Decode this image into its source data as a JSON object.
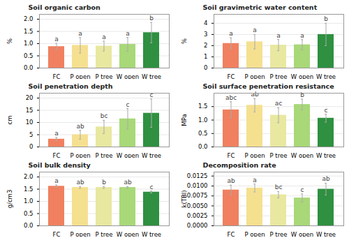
{
  "chart_data": [
    {
      "type": "bar",
      "title": "Soil organic carbon",
      "ylabel": "%",
      "categories": [
        "FC",
        "P open",
        "P tree",
        "W open",
        "W tree"
      ],
      "values": [
        0.88,
        0.93,
        0.9,
        0.97,
        1.45
      ],
      "errors": [
        0.13,
        0.32,
        0.2,
        0.28,
        0.42
      ],
      "annotations": [
        "a",
        "a",
        "a",
        "a",
        "b"
      ],
      "colors": [
        "#F08060",
        "#F5E090",
        "#E8E8A0",
        "#A8D878",
        "#2E9040"
      ],
      "ylim": [
        0,
        2.2
      ],
      "yticks": [
        {
          "value": 0,
          "label": "0.0"
        },
        0.5,
        {
          "value": 1,
          "label": "1.0"
        },
        1.5,
        {
          "value": 2,
          "label": "2.0"
        }
      ],
      "grid": true
    },
    {
      "type": "bar",
      "title": "Soil gravimetric water content",
      "ylabel": "%",
      "categories": [
        "FC",
        "P open",
        "P tree",
        "W open",
        "W tree"
      ],
      "values": [
        2.2,
        2.35,
        2.05,
        2.08,
        3.0
      ],
      "errors": [
        0.5,
        0.65,
        0.5,
        0.45,
        1.0
      ],
      "annotations": [
        "a",
        "a",
        "a",
        "a",
        "b"
      ],
      "colors": [
        "#F08060",
        "#F5E090",
        "#E8E8A0",
        "#A8D878",
        "#2E9040"
      ],
      "ylim": [
        0,
        4.8
      ],
      "yticks": [
        0,
        1,
        2,
        3,
        4
      ],
      "grid": true
    },
    {
      "type": "bar",
      "title": "Soil penetration depth",
      "ylabel": "cm",
      "categories": [
        "FC",
        "P open",
        "P tree",
        "W open",
        "W tree"
      ],
      "values": [
        3.2,
        5.0,
        8.2,
        11.5,
        13.8
      ],
      "errors": [
        0.7,
        1.8,
        2.7,
        4.2,
        5.8
      ],
      "annotations": [
        "a",
        "ab",
        "bc",
        "c",
        "c"
      ],
      "colors": [
        "#F08060",
        "#F5E090",
        "#E8E8A0",
        "#A8D878",
        "#2E9040"
      ],
      "ylim": [
        0,
        22
      ],
      "yticks": [
        0,
        5,
        10,
        15,
        20
      ],
      "grid": true
    },
    {
      "type": "bar",
      "title": "Soil surface penetration resistance",
      "ylabel": "MPa",
      "categories": [
        "FC",
        "P open",
        "P tree",
        "W open",
        "W tree"
      ],
      "values": [
        1.38,
        1.55,
        1.18,
        1.58,
        1.07
      ],
      "errors": [
        0.3,
        0.25,
        0.28,
        0.2,
        0.15
      ],
      "annotations": [
        "abc",
        "ab",
        "ac",
        "b",
        "c"
      ],
      "colors": [
        "#F08060",
        "#F5E090",
        "#E8E8A0",
        "#A8D878",
        "#2E9040"
      ],
      "ylim": [
        0,
        2.0
      ],
      "yticks": [
        {
          "value": 0,
          "label": "0.0"
        },
        0.5,
        {
          "value": 1,
          "label": "1.0"
        },
        1.5
      ],
      "grid": true
    },
    {
      "type": "bar",
      "title": "Soil bulk density",
      "ylabel": "g/cm3",
      "categories": [
        "FC",
        "P open",
        "P tree",
        "W open",
        "W tree"
      ],
      "values": [
        1.62,
        1.57,
        1.57,
        1.57,
        1.38
      ],
      "errors": [
        0.05,
        0.04,
        0.04,
        0.04,
        0.04
      ],
      "annotations": [
        "a",
        "ab",
        "b",
        "ab",
        "c"
      ],
      "colors": [
        "#F08060",
        "#F5E090",
        "#E8E8A0",
        "#A8D878",
        "#2E9040"
      ],
      "ylim": [
        0,
        2.2
      ],
      "yticks": [
        {
          "value": 0,
          "label": "0.0"
        },
        0.5,
        {
          "value": 1,
          "label": "1.0"
        },
        1.5,
        {
          "value": 2,
          "label": "2.0"
        }
      ],
      "grid": true
    },
    {
      "type": "bar",
      "title": "Decomposition rate",
      "ylabel": "k(TBI)",
      "categories": [
        "FC",
        "P open",
        "P tree",
        "W open",
        "W tree"
      ],
      "values": [
        0.009,
        0.0095,
        0.0078,
        0.007,
        0.0092
      ],
      "errors": [
        0.0012,
        0.001,
        0.0008,
        0.001,
        0.0015
      ],
      "annotations": [
        "ab",
        "a",
        "bc",
        "c",
        "ab"
      ],
      "colors": [
        "#F08060",
        "#F5E090",
        "#E8E8A0",
        "#A8D878",
        "#2E9040"
      ],
      "ylim": [
        0,
        0.0135
      ],
      "yticks": [
        {
          "value": 0,
          "label": "0.0000"
        },
        {
          "value": 0.0025,
          "label": "0.0025"
        },
        {
          "value": 0.005,
          "label": "0.0050"
        },
        {
          "value": 0.0075,
          "label": "0.0075"
        },
        {
          "value": 0.01,
          "label": "0.0100"
        },
        {
          "value": 0.0125,
          "label": "0.0125"
        }
      ],
      "grid": true
    }
  ]
}
